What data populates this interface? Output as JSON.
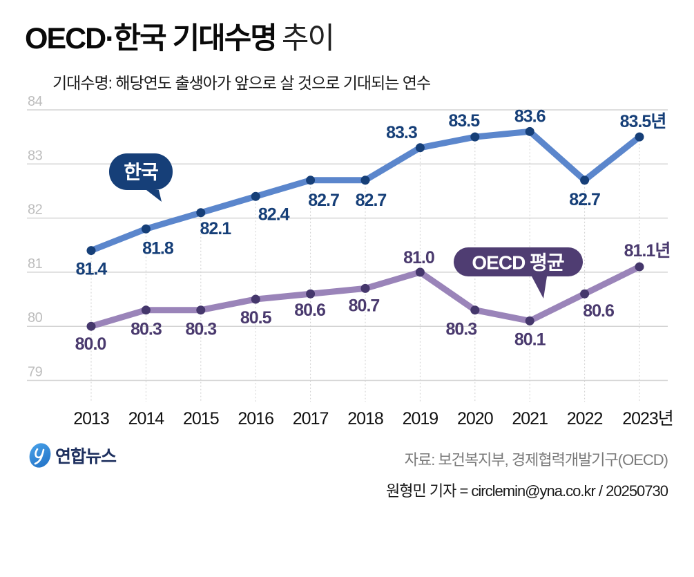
{
  "header": {
    "title_bold": "OECD·한국 기대수명",
    "title_light": "추이",
    "subtitle": "기대수명: 해당연도 출생아가 앞으로 살 것으로 기대되는 연수"
  },
  "chart_data": {
    "type": "line",
    "title": "OECD·한국 기대수명 추이",
    "subtitle": "기대수명: 해당연도 출생아가 앞으로 살 것으로 기대되는 연수",
    "xlabel": "",
    "ylabel": "",
    "categories": [
      "2013",
      "2014",
      "2015",
      "2016",
      "2017",
      "2018",
      "2019",
      "2020",
      "2021",
      "2022",
      "2023"
    ],
    "x_tick_labels": [
      "2013",
      "2014",
      "2015",
      "2016",
      "2017",
      "2018",
      "2019",
      "2020",
      "2021",
      "2022",
      "2023년"
    ],
    "ylim": [
      79,
      84
    ],
    "yticks": [
      79,
      80,
      81,
      82,
      83,
      84
    ],
    "grid": true,
    "series": [
      {
        "name": "한국",
        "values": [
          81.4,
          81.8,
          82.1,
          82.4,
          82.7,
          82.7,
          83.3,
          83.5,
          83.6,
          82.7,
          83.5
        ],
        "labels": [
          "81.4",
          "81.8",
          "82.1",
          "82.4",
          "82.7",
          "82.7",
          "83.3",
          "83.5",
          "83.6",
          "82.7",
          "83.5년"
        ],
        "line_color": "#5b86cc",
        "marker_color": "#163f78"
      },
      {
        "name": "OECD 평균",
        "values": [
          80.0,
          80.3,
          80.3,
          80.5,
          80.6,
          80.7,
          81.0,
          80.3,
          80.1,
          80.6,
          81.1
        ],
        "labels": [
          "80.0",
          "80.3",
          "80.3",
          "80.5",
          "80.6",
          "80.7",
          "81.0",
          "80.3",
          "80.1",
          "80.6",
          "81.1년"
        ],
        "line_color": "#9a84b9",
        "marker_color": "#45376c"
      }
    ]
  },
  "footer": {
    "logo_text": "연합뉴스",
    "source": "자료: 보건복지부, 경제협력개발기구(OECD)",
    "credit": "원형민 기자 = circlemin@yna.co.kr / 20250730"
  }
}
